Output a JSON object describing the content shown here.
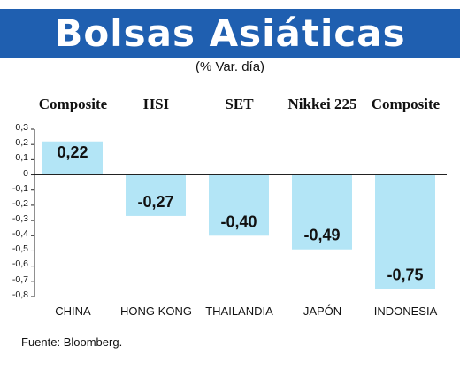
{
  "header": {
    "title": "Bolsas Asiáticas",
    "subtitle": "(% Var. día)"
  },
  "source": "Fuente: Bloomberg.",
  "colors": {
    "banner": "#1f5fb0",
    "bar": "#b3e5f6",
    "text": "#111111"
  },
  "chart_data": {
    "type": "bar",
    "title": "Bolsas Asiáticas",
    "subtitle": "(% Var. día)",
    "categories": [
      "CHINA",
      "HONG KONG",
      "THAILANDIA",
      "JAPÓN",
      "INDONESIA"
    ],
    "indices": [
      "Composite",
      "HSI",
      "SET",
      "Nikkei 225",
      "Composite"
    ],
    "values": [
      0.22,
      -0.27,
      -0.4,
      -0.49,
      -0.75
    ],
    "value_labels": [
      "0,22",
      "-0,27",
      "-0,40",
      "-0,49",
      "-0,75"
    ],
    "yticks": [
      "0,3",
      "0,2",
      "0,1",
      "0",
      "-0,1",
      "-0,2",
      "-0,3",
      "-0,4",
      "-0,5",
      "-0,6",
      "-0,7",
      "-0,8"
    ],
    "ylim": [
      -0.8,
      0.3
    ],
    "xlabel": "",
    "ylabel": "",
    "grid": false,
    "source": "Fuente: Bloomberg."
  }
}
